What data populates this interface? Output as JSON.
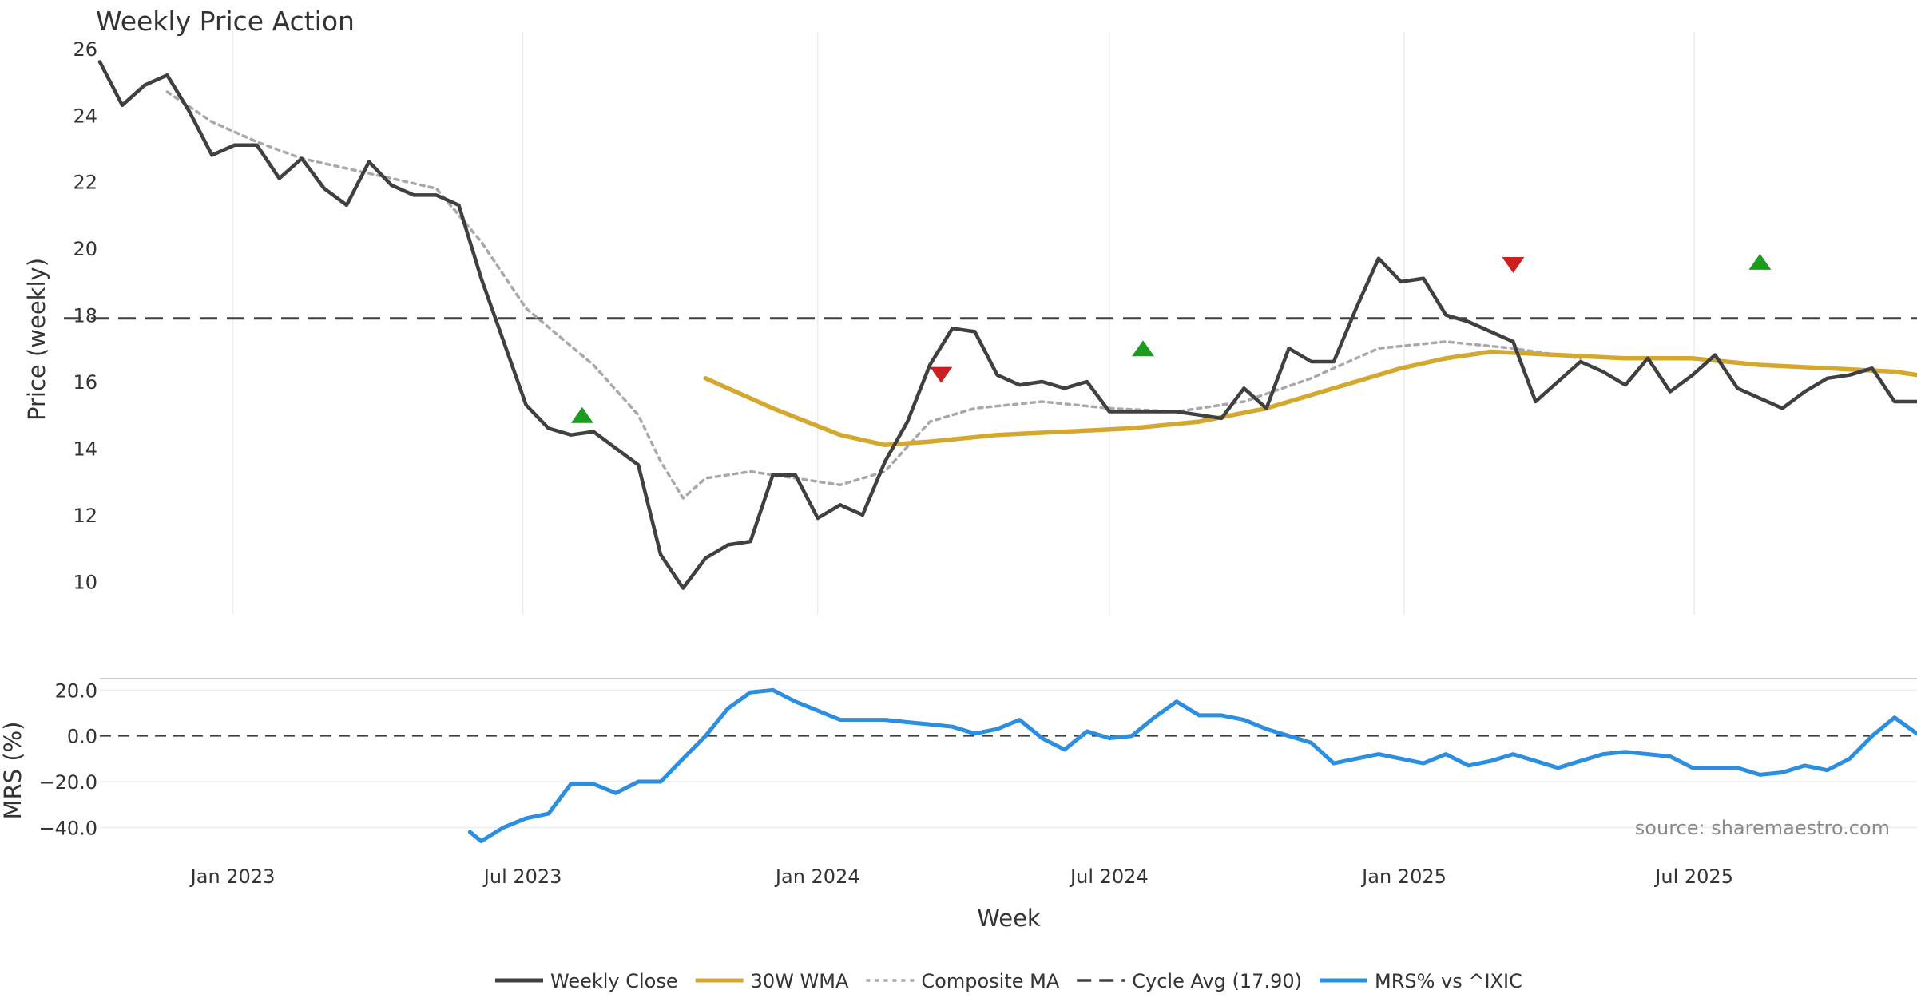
{
  "chart_data": {
    "type": "line",
    "title": "Weekly Price Action",
    "xlabel": "Week",
    "source_text": "source: sharemaestro.com",
    "x_ticks": [
      "Jan 2023",
      "Jul 2023",
      "Jan 2024",
      "Jul 2024",
      "Jan 2025",
      "Jul 2025"
    ],
    "x_range": [
      "2022-10-10",
      "2025-11-17"
    ],
    "price_panel": {
      "ylabel": "Price (weekly)",
      "ylim": [
        9.0,
        26.5
      ],
      "y_ticks": [
        10,
        12,
        14,
        16,
        18,
        20,
        22,
        24,
        26
      ],
      "grid": "vertical",
      "cycle_avg": 17.9,
      "series": [
        {
          "name": "Weekly Close",
          "color": "#404040",
          "points": [
            [
              "2022-10-10",
              25.6
            ],
            [
              "2022-10-24",
              24.3
            ],
            [
              "2022-11-07",
              24.9
            ],
            [
              "2022-11-21",
              25.2
            ],
            [
              "2022-12-05",
              24.1
            ],
            [
              "2022-12-19",
              22.8
            ],
            [
              "2023-01-02",
              23.1
            ],
            [
              "2023-01-16",
              23.1
            ],
            [
              "2023-01-30",
              22.1
            ],
            [
              "2023-02-13",
              22.7
            ],
            [
              "2023-02-27",
              21.8
            ],
            [
              "2023-03-13",
              21.3
            ],
            [
              "2023-03-27",
              22.6
            ],
            [
              "2023-04-10",
              21.9
            ],
            [
              "2023-04-24",
              21.6
            ],
            [
              "2023-05-08",
              21.6
            ],
            [
              "2023-05-22",
              21.3
            ],
            [
              "2023-06-05",
              19.1
            ],
            [
              "2023-06-19",
              17.2
            ],
            [
              "2023-07-03",
              15.3
            ],
            [
              "2023-07-17",
              14.6
            ],
            [
              "2023-07-31",
              14.4
            ],
            [
              "2023-08-14",
              14.5
            ],
            [
              "2023-08-28",
              14.0
            ],
            [
              "2023-09-11",
              13.5
            ],
            [
              "2023-09-25",
              10.8
            ],
            [
              "2023-10-09",
              9.8
            ],
            [
              "2023-10-23",
              10.7
            ],
            [
              "2023-11-06",
              11.1
            ],
            [
              "2023-11-20",
              11.2
            ],
            [
              "2023-12-04",
              13.2
            ],
            [
              "2023-12-18",
              13.2
            ],
            [
              "2024-01-01",
              11.9
            ],
            [
              "2024-01-15",
              12.3
            ],
            [
              "2024-01-29",
              12.0
            ],
            [
              "2024-02-12",
              13.6
            ],
            [
              "2024-02-26",
              14.8
            ],
            [
              "2024-03-11",
              16.5
            ],
            [
              "2024-03-25",
              17.6
            ],
            [
              "2024-04-08",
              17.5
            ],
            [
              "2024-04-22",
              16.2
            ],
            [
              "2024-05-06",
              15.9
            ],
            [
              "2024-05-20",
              16.0
            ],
            [
              "2024-06-03",
              15.8
            ],
            [
              "2024-06-17",
              16.0
            ],
            [
              "2024-07-01",
              15.1
            ],
            [
              "2024-07-15",
              15.1
            ],
            [
              "2024-07-29",
              15.1
            ],
            [
              "2024-08-12",
              15.1
            ],
            [
              "2024-08-26",
              15.0
            ],
            [
              "2024-09-09",
              14.9
            ],
            [
              "2024-09-23",
              15.8
            ],
            [
              "2024-10-07",
              15.2
            ],
            [
              "2024-10-21",
              17.0
            ],
            [
              "2024-11-04",
              16.6
            ],
            [
              "2024-11-18",
              16.6
            ],
            [
              "2024-12-02",
              18.2
            ],
            [
              "2024-12-16",
              19.7
            ],
            [
              "2024-12-30",
              19.0
            ],
            [
              "2025-01-13",
              19.1
            ],
            [
              "2025-01-27",
              18.0
            ],
            [
              "2025-02-10",
              17.8
            ],
            [
              "2025-02-24",
              17.5
            ],
            [
              "2025-03-10",
              17.2
            ],
            [
              "2025-03-24",
              15.4
            ],
            [
              "2025-04-07",
              16.0
            ],
            [
              "2025-04-21",
              16.6
            ],
            [
              "2025-05-05",
              16.3
            ],
            [
              "2025-05-19",
              15.9
            ],
            [
              "2025-06-02",
              16.7
            ],
            [
              "2025-06-16",
              15.7
            ],
            [
              "2025-06-30",
              16.2
            ],
            [
              "2025-07-14",
              16.8
            ],
            [
              "2025-07-28",
              15.8
            ],
            [
              "2025-08-11",
              15.5
            ],
            [
              "2025-08-25",
              15.2
            ],
            [
              "2025-09-08",
              15.7
            ],
            [
              "2025-09-22",
              16.1
            ],
            [
              "2025-10-06",
              16.2
            ],
            [
              "2025-10-20",
              16.4
            ],
            [
              "2025-11-03",
              15.4
            ],
            [
              "2025-11-17",
              15.4
            ]
          ]
        },
        {
          "name": "30W WMA",
          "color": "#d4a82f",
          "points": [
            [
              "2023-10-23",
              16.1
            ],
            [
              "2023-12-04",
              15.2
            ],
            [
              "2024-01-15",
              14.4
            ],
            [
              "2024-02-12",
              14.1
            ],
            [
              "2024-03-11",
              14.2
            ],
            [
              "2024-04-22",
              14.4
            ],
            [
              "2024-06-03",
              14.5
            ],
            [
              "2024-07-15",
              14.6
            ],
            [
              "2024-08-26",
              14.8
            ],
            [
              "2024-10-07",
              15.2
            ],
            [
              "2024-11-18",
              15.8
            ],
            [
              "2024-12-30",
              16.4
            ],
            [
              "2025-01-27",
              16.7
            ],
            [
              "2025-02-24",
              16.9
            ],
            [
              "2025-04-07",
              16.8
            ],
            [
              "2025-05-19",
              16.7
            ],
            [
              "2025-06-30",
              16.7
            ],
            [
              "2025-08-11",
              16.5
            ],
            [
              "2025-09-22",
              16.4
            ],
            [
              "2025-11-03",
              16.3
            ],
            [
              "2025-11-17",
              16.2
            ]
          ]
        },
        {
          "name": "Composite MA",
          "color": "#a8a8a8",
          "points": [
            [
              "2022-11-21",
              24.7
            ],
            [
              "2022-12-19",
              23.8
            ],
            [
              "2023-01-16",
              23.2
            ],
            [
              "2023-02-13",
              22.7
            ],
            [
              "2023-03-13",
              22.4
            ],
            [
              "2023-04-10",
              22.1
            ],
            [
              "2023-05-08",
              21.8
            ],
            [
              "2023-06-05",
              20.2
            ],
            [
              "2023-07-03",
              18.2
            ],
            [
              "2023-08-14",
              16.5
            ],
            [
              "2023-09-11",
              15.0
            ],
            [
              "2023-09-25",
              13.6
            ],
            [
              "2023-10-09",
              12.5
            ],
            [
              "2023-10-23",
              13.1
            ],
            [
              "2023-11-20",
              13.3
            ],
            [
              "2023-12-18",
              13.1
            ],
            [
              "2024-01-15",
              12.9
            ],
            [
              "2024-02-12",
              13.3
            ],
            [
              "2024-03-11",
              14.8
            ],
            [
              "2024-04-08",
              15.2
            ],
            [
              "2024-05-20",
              15.4
            ],
            [
              "2024-07-01",
              15.2
            ],
            [
              "2024-08-12",
              15.1
            ],
            [
              "2024-09-23",
              15.4
            ],
            [
              "2024-11-04",
              16.1
            ],
            [
              "2024-12-16",
              17.0
            ],
            [
              "2025-01-27",
              17.2
            ],
            [
              "2025-03-10",
              17.0
            ],
            [
              "2025-04-21",
              16.7
            ]
          ]
        }
      ],
      "markers": [
        {
          "type": "buy",
          "date": "2023-08-07",
          "value": 15.0,
          "color": "#1c9c1c"
        },
        {
          "type": "sell",
          "date": "2024-03-18",
          "value": 16.2,
          "color": "#cc1f1f"
        },
        {
          "type": "buy",
          "date": "2024-07-22",
          "value": 17.0,
          "color": "#1c9c1c"
        },
        {
          "type": "sell",
          "date": "2025-03-10",
          "value": 19.5,
          "color": "#cc1f1f"
        },
        {
          "type": "buy",
          "date": "2025-08-11",
          "value": 19.6,
          "color": "#1c9c1c"
        }
      ]
    },
    "mrs_panel": {
      "ylabel": "MRS (%)",
      "ylim": [
        -50,
        25
      ],
      "y_ticks": [
        20,
        0,
        -20,
        -40
      ],
      "y_tick_labels": [
        "20.0",
        "0.0",
        "−20.0",
        "−40.0"
      ],
      "grid": "horizontal",
      "zero_line": 0,
      "series": [
        {
          "name": "MRS% vs ^IXIC",
          "color": "#2b8ee0",
          "points": [
            [
              "2023-05-29",
              -42
            ],
            [
              "2023-06-05",
              -46
            ],
            [
              "2023-06-19",
              -40
            ],
            [
              "2023-07-03",
              -36
            ],
            [
              "2023-07-17",
              -34
            ],
            [
              "2023-07-31",
              -21
            ],
            [
              "2023-08-14",
              -21
            ],
            [
              "2023-08-28",
              -25
            ],
            [
              "2023-09-11",
              -20
            ],
            [
              "2023-09-25",
              -20
            ],
            [
              "2023-10-09",
              -10
            ],
            [
              "2023-10-23",
              0
            ],
            [
              "2023-11-06",
              12
            ],
            [
              "2023-11-20",
              19
            ],
            [
              "2023-12-04",
              20
            ],
            [
              "2023-12-18",
              15
            ],
            [
              "2024-01-01",
              11
            ],
            [
              "2024-01-15",
              7
            ],
            [
              "2024-01-29",
              7
            ],
            [
              "2024-02-12",
              7
            ],
            [
              "2024-02-26",
              6
            ],
            [
              "2024-03-11",
              5
            ],
            [
              "2024-03-25",
              4
            ],
            [
              "2024-04-08",
              1
            ],
            [
              "2024-04-22",
              3
            ],
            [
              "2024-05-06",
              7
            ],
            [
              "2024-05-20",
              -1
            ],
            [
              "2024-06-03",
              -6
            ],
            [
              "2024-06-17",
              2
            ],
            [
              "2024-07-01",
              -1
            ],
            [
              "2024-07-15",
              0
            ],
            [
              "2024-07-29",
              8
            ],
            [
              "2024-08-12",
              15
            ],
            [
              "2024-08-26",
              9
            ],
            [
              "2024-09-09",
              9
            ],
            [
              "2024-09-23",
              7
            ],
            [
              "2024-10-07",
              3
            ],
            [
              "2024-10-21",
              0
            ],
            [
              "2024-11-04",
              -3
            ],
            [
              "2024-11-18",
              -12
            ],
            [
              "2024-12-02",
              -10
            ],
            [
              "2024-12-16",
              -8
            ],
            [
              "2024-12-30",
              -10
            ],
            [
              "2025-01-13",
              -12
            ],
            [
              "2025-01-27",
              -8
            ],
            [
              "2025-02-10",
              -13
            ],
            [
              "2025-02-24",
              -11
            ],
            [
              "2025-03-10",
              -8
            ],
            [
              "2025-03-24",
              -11
            ],
            [
              "2025-04-07",
              -14
            ],
            [
              "2025-04-21",
              -11
            ],
            [
              "2025-05-05",
              -8
            ],
            [
              "2025-05-19",
              -7
            ],
            [
              "2025-06-02",
              -8
            ],
            [
              "2025-06-16",
              -9
            ],
            [
              "2025-06-30",
              -14
            ],
            [
              "2025-07-14",
              -14
            ],
            [
              "2025-07-28",
              -14
            ],
            [
              "2025-08-11",
              -17
            ],
            [
              "2025-08-25",
              -16
            ],
            [
              "2025-09-08",
              -13
            ],
            [
              "2025-09-22",
              -15
            ],
            [
              "2025-10-06",
              -10
            ],
            [
              "2025-10-20",
              0
            ],
            [
              "2025-11-03",
              8
            ],
            [
              "2025-11-17",
              1
            ]
          ]
        }
      ]
    },
    "legend": {
      "placement": "bottom",
      "entries": [
        {
          "label": "Weekly Close",
          "style": "solid",
          "color": "#404040"
        },
        {
          "label": "30W WMA",
          "style": "solid",
          "color": "#d4a82f"
        },
        {
          "label": "Composite MA",
          "style": "dotted",
          "color": "#a8a8a8"
        },
        {
          "label": "Cycle Avg (17.90)",
          "style": "dashed",
          "color": "#404040"
        },
        {
          "label": "MRS% vs ^IXIC",
          "style": "solid",
          "color": "#2b8ee0"
        }
      ]
    }
  }
}
